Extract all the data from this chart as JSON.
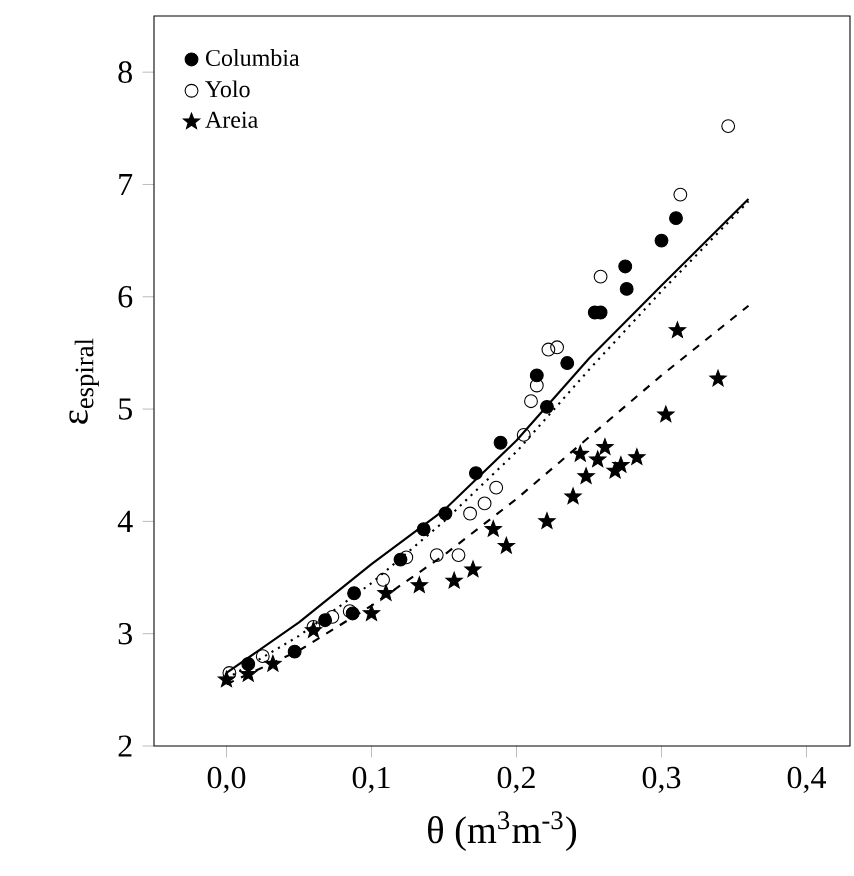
{
  "chart_data": {
    "type": "scatter",
    "xlabel": "θ (m$^{3}$m$^{-3}$)",
    "ylabel": "ε$_{espiral}$",
    "xlim": [
      -0.05,
      0.43
    ],
    "ylim": [
      2,
      8.5
    ],
    "xticks": [
      {
        "value": 0,
        "label": "0,0"
      },
      {
        "value": 0.1,
        "label": "0,1"
      },
      {
        "value": 0.2,
        "label": "0,2"
      },
      {
        "value": 0.3,
        "label": "0,3"
      },
      {
        "value": 0.4,
        "label": "0,4"
      }
    ],
    "yticks": [
      2,
      3,
      4,
      5,
      6,
      7,
      8
    ],
    "legend": "top left",
    "grid": false,
    "series": [
      {
        "name": "Columbia",
        "marker": "circle",
        "color": "#000000",
        "x": [
          0.015,
          0.047,
          0.068,
          0.087,
          0.088,
          0.12,
          0.136,
          0.151,
          0.172,
          0.189,
          0.214,
          0.221,
          0.235,
          0.254,
          0.258,
          0.275,
          0.276,
          0.3,
          0.31
        ],
        "values": [
          2.73,
          2.84,
          3.12,
          3.18,
          3.36,
          3.66,
          3.93,
          4.07,
          4.43,
          4.7,
          5.3,
          5.02,
          5.41,
          5.86,
          5.86,
          6.27,
          6.07,
          6.5,
          6.7
        ]
      },
      {
        "name": "Yolo",
        "marker": "circle-open",
        "color": "#000000",
        "x": [
          0.002,
          0.025,
          0.06,
          0.073,
          0.085,
          0.108,
          0.124,
          0.145,
          0.16,
          0.168,
          0.178,
          0.186,
          0.205,
          0.21,
          0.214,
          0.222,
          0.228,
          0.258,
          0.313,
          0.346
        ],
        "values": [
          2.65,
          2.8,
          3.06,
          3.15,
          3.2,
          3.48,
          3.68,
          3.7,
          3.7,
          4.07,
          4.16,
          4.3,
          4.77,
          5.07,
          5.21,
          5.53,
          5.55,
          6.18,
          6.91,
          7.52
        ]
      },
      {
        "name": "Areia",
        "marker": "star",
        "color": "#000000",
        "x": [
          0.0,
          0.015,
          0.032,
          0.06,
          0.1,
          0.11,
          0.133,
          0.157,
          0.17,
          0.184,
          0.193,
          0.221,
          0.239,
          0.244,
          0.248,
          0.256,
          0.261,
          0.268,
          0.272,
          0.283,
          0.303,
          0.311,
          0.339
        ],
        "values": [
          2.59,
          2.64,
          2.73,
          3.03,
          3.18,
          3.36,
          3.43,
          3.47,
          3.57,
          3.93,
          3.78,
          4.0,
          4.22,
          4.6,
          4.4,
          4.55,
          4.66,
          4.45,
          4.5,
          4.57,
          4.95,
          5.7,
          5.27
        ]
      },
      {
        "type": "line",
        "line_style": "solid",
        "marker": "none",
        "color": "#000000",
        "x": [
          0.0,
          0.05,
          0.1,
          0.15,
          0.2,
          0.25,
          0.3,
          0.36
        ],
        "values": [
          2.65,
          3.1,
          3.62,
          4.1,
          4.72,
          5.45,
          6.1,
          6.87
        ]
      },
      {
        "type": "line",
        "line_style": "dotted",
        "marker": "none",
        "color": "#000000",
        "x": [
          0.0,
          0.05,
          0.1,
          0.15,
          0.2,
          0.25,
          0.3,
          0.36
        ],
        "values": [
          2.6,
          2.98,
          3.45,
          4.0,
          4.62,
          5.35,
          6.05,
          6.85
        ]
      },
      {
        "type": "line",
        "line_style": "dashed",
        "marker": "none",
        "color": "#000000",
        "x": [
          0.0,
          0.05,
          0.1,
          0.15,
          0.2,
          0.25,
          0.3,
          0.36
        ],
        "values": [
          2.55,
          2.85,
          3.25,
          3.7,
          4.2,
          4.75,
          5.3,
          5.92
        ]
      }
    ]
  }
}
